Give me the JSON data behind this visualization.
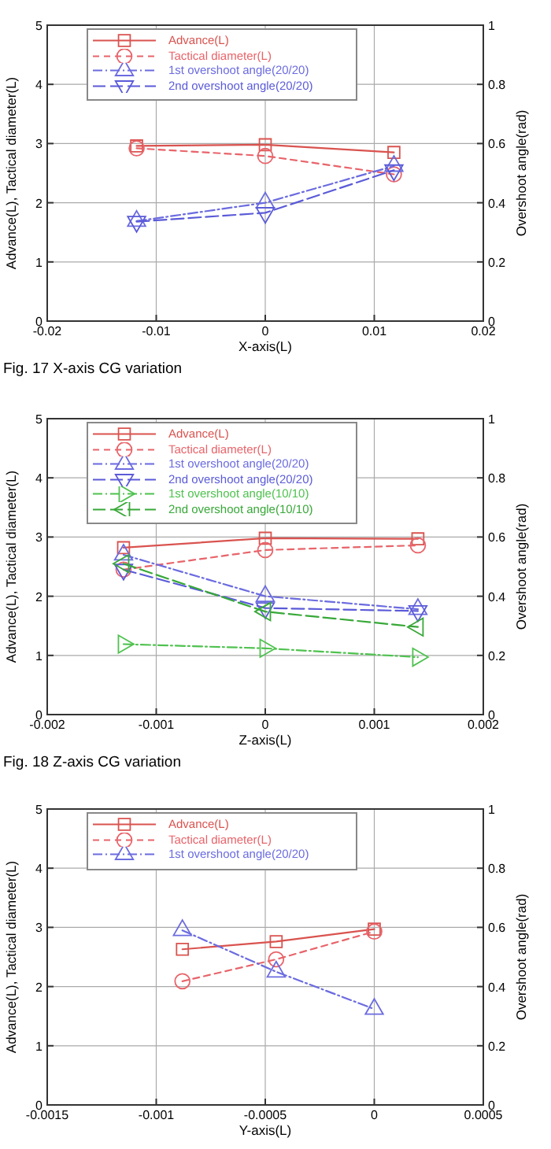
{
  "chart_data": [
    {
      "type": "line",
      "xlabel": "X-axis(L)",
      "ylabel": "Advance(L), Tactical diameter(L)",
      "y2label": "Overshoot angle(rad)",
      "annotations": [
        "Fig. 17 X-axis CG variation"
      ],
      "xlim": [
        -0.02,
        0.02
      ],
      "xticks": [
        -0.02,
        -0.01,
        0,
        0.01,
        0.02
      ],
      "ylim": [
        0,
        5
      ],
      "yticks": [
        0,
        1,
        2,
        3,
        4,
        5
      ],
      "y2lim": [
        0,
        1
      ],
      "y2ticks": [
        0,
        0.2,
        0.4,
        0.6,
        0.8,
        1
      ],
      "grid": true,
      "legend": "top left",
      "x": [
        -0.0118,
        0,
        0.0118
      ],
      "series": [
        {
          "name": "Advance(L)",
          "color": "#d9534f",
          "marker": "square",
          "line_style": "solid",
          "values": [
            2.96,
            2.98,
            2.85
          ]
        },
        {
          "name": "Tactical diameter(L)",
          "color": "#e8646a",
          "marker": "circle",
          "line_style": "dashed",
          "values": [
            2.92,
            2.79,
            2.48
          ]
        },
        {
          "name": "1st overshoot angle(20/20)",
          "color": "#6b6be0",
          "marker": "triangle",
          "line_style": "dashdot",
          "axis": "y2",
          "values": [
            0.338,
            0.4,
            0.524
          ]
        },
        {
          "name": "2nd overshoot angle(20/20)",
          "color": "#5a5ad8",
          "marker": "triangle-down",
          "line_style": "longdash",
          "axis": "y2",
          "values": [
            0.336,
            0.366,
            0.51
          ]
        }
      ]
    },
    {
      "type": "line",
      "xlabel": "Z-axis(L)",
      "ylabel": "Advance(L), Tactical diameter(L)",
      "y2label": "Overshoot angle(rad)",
      "annotations": [
        "Fig. 18 Z-axis CG variation"
      ],
      "xlim": [
        -0.002,
        0.002
      ],
      "xticks": [
        -0.002,
        -0.001,
        0,
        0.001,
        0.002
      ],
      "ylim": [
        0,
        5
      ],
      "yticks": [
        0,
        1,
        2,
        3,
        4,
        5
      ],
      "y2lim": [
        0,
        1
      ],
      "y2ticks": [
        0,
        0.2,
        0.4,
        0.6,
        0.8,
        1
      ],
      "grid": true,
      "legend": "top left",
      "x": [
        -0.0013,
        0,
        0.0014
      ],
      "series": [
        {
          "name": "Advance(L)",
          "color": "#d9534f",
          "marker": "square",
          "line_style": "solid",
          "values": [
            2.82,
            2.98,
            2.97
          ]
        },
        {
          "name": "Tactical diameter(L)",
          "color": "#e8646a",
          "marker": "circle",
          "line_style": "dashed",
          "values": [
            2.45,
            2.78,
            2.86
          ]
        },
        {
          "name": "1st overshoot angle(20/20)",
          "color": "#6b6be0",
          "marker": "triangle",
          "line_style": "dashdot",
          "axis": "y2",
          "values": [
            0.54,
            0.4,
            0.356
          ]
        },
        {
          "name": "2nd overshoot angle(20/20)",
          "color": "#5a5ad8",
          "marker": "triangle-down",
          "line_style": "longdash",
          "axis": "y2",
          "values": [
            0.49,
            0.36,
            0.35
          ]
        },
        {
          "name": "1st overshoot angle(10/10)",
          "color": "#4fc24f",
          "marker": "triangle-right",
          "line_style": "dashdot",
          "axis": "y2",
          "values": [
            0.238,
            0.224,
            0.194
          ]
        },
        {
          "name": "2nd overshoot angle(10/10)",
          "color": "#38a838",
          "marker": "triangle-left",
          "line_style": "longdash",
          "axis": "y2",
          "values": [
            0.51,
            0.348,
            0.296
          ]
        }
      ]
    },
    {
      "type": "line",
      "xlabel": "Y-axis(L)",
      "ylabel": "Advance(L), Tactical diameter(L)",
      "y2label": "Overshoot angle(rad)",
      "xlim": [
        -0.0015,
        0.0005
      ],
      "xticks": [
        -0.0015,
        -0.001,
        -0.0005,
        0,
        0.0005
      ],
      "ylim": [
        0,
        5
      ],
      "yticks": [
        0,
        1,
        2,
        3,
        4,
        5
      ],
      "y2lim": [
        0,
        1
      ],
      "y2ticks": [
        0,
        0.2,
        0.4,
        0.6,
        0.8,
        1
      ],
      "grid": true,
      "legend": "top left",
      "x": [
        -0.00088,
        -0.00045,
        0
      ],
      "series": [
        {
          "name": "Advance(L)",
          "color": "#d9534f",
          "marker": "square",
          "line_style": "solid",
          "values": [
            2.63,
            2.76,
            2.97
          ]
        },
        {
          "name": "Tactical diameter(L)",
          "color": "#e8646a",
          "marker": "circle",
          "line_style": "dashed",
          "values": [
            2.09,
            2.46,
            2.93
          ]
        },
        {
          "name": "1st overshoot angle(20/20)",
          "color": "#6b6be0",
          "marker": "triangle",
          "line_style": "dashdot",
          "axis": "y2",
          "values": [
            0.59,
            0.45,
            0.324
          ]
        }
      ]
    }
  ]
}
